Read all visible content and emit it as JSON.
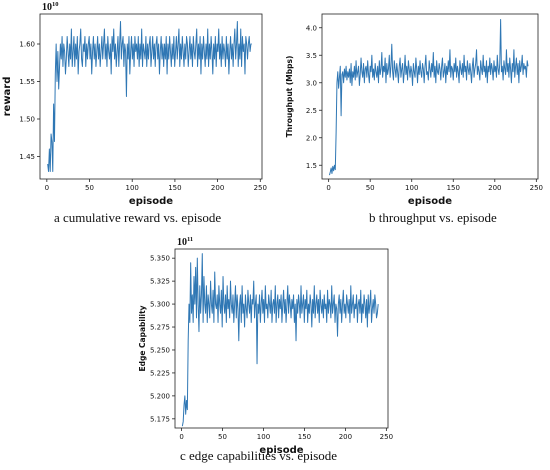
{
  "colors": {
    "line": "#2f77b4",
    "axes": "#222222",
    "background": "#ffffff"
  },
  "chart_data": [
    {
      "type": "line",
      "caption": "a  cumulative reward vs. episode",
      "xlabel": "episode",
      "ylabel": "reward",
      "exponent": "10",
      "exponent_power": "10",
      "xlim": [
        -8,
        252
      ],
      "ylim": [
        1.42,
        1.64
      ],
      "xticks": [
        0,
        50,
        100,
        150,
        200,
        250
      ],
      "yticks": [
        1.45,
        1.5,
        1.55,
        1.6
      ],
      "ytick_labels": [
        "1.45",
        "1.50",
        "1.55",
        "1.60"
      ],
      "x_start": 1,
      "x_end": 240,
      "values": [
        1.44,
        1.43,
        1.46,
        1.43,
        1.48,
        1.47,
        1.43,
        1.52,
        1.47,
        1.56,
        1.6,
        1.55,
        1.59,
        1.54,
        1.57,
        1.6,
        1.58,
        1.61,
        1.57,
        1.6,
        1.59,
        1.56,
        1.58,
        1.61,
        1.59,
        1.57,
        1.6,
        1.58,
        1.62,
        1.57,
        1.59,
        1.61,
        1.57,
        1.6,
        1.58,
        1.61,
        1.56,
        1.59,
        1.6,
        1.62,
        1.58,
        1.57,
        1.6,
        1.59,
        1.61,
        1.57,
        1.6,
        1.58,
        1.6,
        1.61,
        1.58,
        1.6,
        1.56,
        1.59,
        1.61,
        1.58,
        1.6,
        1.57,
        1.59,
        1.61,
        1.58,
        1.6,
        1.57,
        1.59,
        1.61,
        1.58,
        1.6,
        1.62,
        1.58,
        1.6,
        1.57,
        1.61,
        1.59,
        1.58,
        1.6,
        1.56,
        1.61,
        1.59,
        1.62,
        1.58,
        1.6,
        1.57,
        1.59,
        1.61,
        1.57,
        1.6,
        1.63,
        1.58,
        1.6,
        1.61,
        1.57,
        1.6,
        1.59,
        1.53,
        1.6,
        1.58,
        1.61,
        1.56,
        1.59,
        1.61,
        1.58,
        1.6,
        1.57,
        1.61,
        1.59,
        1.6,
        1.58,
        1.61,
        1.57,
        1.6,
        1.58,
        1.62,
        1.57,
        1.6,
        1.59,
        1.58,
        1.61,
        1.57,
        1.6,
        1.58,
        1.6,
        1.61,
        1.57,
        1.59,
        1.61,
        1.58,
        1.6,
        1.57,
        1.6,
        1.61,
        1.58,
        1.6,
        1.56,
        1.59,
        1.61,
        1.58,
        1.6,
        1.57,
        1.6,
        1.58,
        1.61,
        1.56,
        1.6,
        1.58,
        1.61,
        1.59,
        1.57,
        1.6,
        1.58,
        1.61,
        1.57,
        1.59,
        1.61,
        1.58,
        1.6,
        1.62,
        1.57,
        1.6,
        1.58,
        1.61,
        1.59,
        1.57,
        1.6,
        1.58,
        1.61,
        1.6,
        1.57,
        1.59,
        1.61,
        1.58,
        1.6,
        1.57,
        1.61,
        1.59,
        1.58,
        1.6,
        1.62,
        1.57,
        1.6,
        1.58,
        1.61,
        1.56,
        1.6,
        1.58,
        1.61,
        1.59,
        1.57,
        1.6,
        1.58,
        1.62,
        1.57,
        1.6,
        1.58,
        1.61,
        1.59,
        1.56,
        1.6,
        1.58,
        1.61,
        1.57,
        1.6,
        1.59,
        1.62,
        1.58,
        1.6,
        1.57,
        1.61,
        1.58,
        1.6,
        1.59,
        1.57,
        1.61,
        1.58,
        1.6,
        1.56,
        1.59,
        1.61,
        1.58,
        1.6,
        1.57,
        1.6,
        1.62,
        1.58,
        1.6,
        1.63,
        1.57,
        1.6,
        1.58,
        1.62,
        1.57,
        1.61,
        1.59,
        1.6,
        1.56,
        1.61,
        1.6,
        1.58,
        1.6,
        1.61,
        1.59,
        1.6,
        1.6
      ]
    },
    {
      "type": "line",
      "caption": "b  throughput vs. episode",
      "xlabel": "episode",
      "ylabel": "Throughput (Mbps)",
      "xlim": [
        -8,
        252
      ],
      "ylim": [
        1.25,
        4.25
      ],
      "xticks": [
        0,
        50,
        100,
        150,
        200,
        250
      ],
      "yticks": [
        1.5,
        2.0,
        2.5,
        3.0,
        3.5,
        4.0
      ],
      "ytick_labels": [
        "1.5",
        "2.0",
        "2.5",
        "3.0",
        "3.5",
        "4.0"
      ],
      "x_start": 1,
      "x_end": 240,
      "values": [
        1.32,
        1.38,
        1.45,
        1.35,
        1.48,
        1.4,
        1.5,
        1.42,
        2.1,
        3.0,
        3.2,
        2.9,
        3.1,
        3.3,
        2.4,
        3.15,
        3.2,
        3.0,
        3.25,
        3.1,
        3.3,
        3.05,
        3.2,
        3.1,
        3.25,
        3.0,
        3.35,
        2.95,
        3.2,
        3.1,
        3.3,
        3.05,
        3.4,
        3.1,
        3.2,
        3.3,
        2.95,
        3.15,
        3.45,
        3.2,
        3.1,
        3.35,
        3.0,
        3.25,
        3.3,
        3.1,
        3.4,
        3.15,
        3.0,
        3.3,
        3.2,
        3.5,
        3.1,
        3.25,
        3.05,
        3.35,
        3.2,
        3.1,
        3.3,
        3.0,
        3.4,
        3.15,
        3.25,
        3.55,
        3.1,
        3.3,
        3.2,
        3.45,
        3.0,
        3.35,
        3.15,
        3.25,
        3.5,
        3.1,
        3.3,
        3.7,
        3.2,
        3.05,
        3.4,
        3.25,
        3.1,
        3.35,
        3.2,
        3.0,
        3.3,
        3.45,
        3.1,
        3.25,
        3.35,
        3.0,
        3.2,
        3.5,
        3.15,
        3.3,
        3.05,
        3.4,
        3.25,
        3.1,
        3.3,
        3.2,
        2.95,
        3.35,
        3.2,
        3.1,
        3.45,
        3.25,
        3.0,
        3.3,
        3.15,
        3.4,
        3.2,
        3.1,
        3.35,
        3.25,
        3.0,
        3.3,
        3.5,
        3.15,
        3.2,
        3.05,
        3.4,
        3.25,
        3.1,
        3.35,
        3.2,
        3.55,
        3.1,
        3.3,
        3.0,
        3.4,
        3.2,
        3.15,
        3.35,
        3.25,
        3.05,
        3.3,
        3.45,
        3.1,
        3.2,
        3.35,
        3.0,
        3.3,
        3.15,
        3.4,
        3.2,
        3.6,
        3.1,
        3.3,
        3.25,
        3.05,
        3.35,
        3.2,
        3.45,
        3.1,
        3.3,
        3.2,
        3.0,
        3.4,
        3.25,
        3.15,
        3.35,
        3.1,
        3.5,
        3.2,
        3.3,
        3.05,
        3.4,
        3.25,
        3.15,
        3.35,
        3.2,
        3.0,
        3.3,
        3.45,
        3.1,
        3.25,
        3.35,
        3.6,
        3.15,
        3.3,
        3.2,
        3.05,
        3.4,
        3.25,
        3.15,
        3.5,
        3.2,
        3.3,
        3.1,
        3.4,
        3.0,
        3.3,
        3.2,
        3.45,
        3.15,
        3.35,
        3.25,
        3.05,
        3.4,
        3.2,
        3.3,
        3.1,
        3.5,
        3.25,
        3.15,
        3.35,
        4.15,
        3.2,
        3.3,
        3.05,
        3.4,
        3.25,
        3.15,
        3.6,
        3.2,
        3.35,
        3.1,
        3.45,
        3.25,
        3.0,
        3.35,
        3.2,
        3.6,
        3.1,
        3.3,
        3.45,
        3.15,
        3.35,
        3.0,
        3.4,
        3.2,
        3.3,
        3.5,
        3.15,
        3.35,
        3.25,
        3.3,
        3.1,
        3.4,
        3.3
      ]
    },
    {
      "type": "line",
      "caption": "c  edge capabilities vs. episode",
      "xlabel": "episode",
      "ylabel": "Edge Capability",
      "exponent": "10",
      "exponent_power": "11",
      "xlim": [
        -8,
        252
      ],
      "ylim": [
        5.165,
        5.36
      ],
      "xticks": [
        0,
        50,
        100,
        150,
        200,
        250
      ],
      "yticks": [
        5.175,
        5.2,
        5.225,
        5.25,
        5.275,
        5.3,
        5.325,
        5.35
      ],
      "ytick_labels": [
        "5.175",
        "5.200",
        "5.225",
        "5.250",
        "5.275",
        "5.300",
        "5.325",
        "5.350"
      ],
      "x_start": 1,
      "x_end": 240,
      "values": [
        5.167,
        5.172,
        5.19,
        5.2,
        5.18,
        5.195,
        5.185,
        5.26,
        5.3,
        5.28,
        5.345,
        5.29,
        5.31,
        5.28,
        5.33,
        5.3,
        5.34,
        5.285,
        5.35,
        5.3,
        5.27,
        5.32,
        5.29,
        5.31,
        5.355,
        5.28,
        5.33,
        5.3,
        5.29,
        5.32,
        5.28,
        5.31,
        5.3,
        5.285,
        5.325,
        5.3,
        5.29,
        5.315,
        5.28,
        5.335,
        5.3,
        5.295,
        5.31,
        5.28,
        5.32,
        5.3,
        5.29,
        5.315,
        5.275,
        5.33,
        5.3,
        5.29,
        5.31,
        5.28,
        5.32,
        5.295,
        5.305,
        5.285,
        5.325,
        5.3,
        5.29,
        5.31,
        5.28,
        5.3,
        5.32,
        5.285,
        5.31,
        5.295,
        5.26,
        5.3,
        5.31,
        5.28,
        5.32,
        5.29,
        5.3,
        5.275,
        5.31,
        5.295,
        5.285,
        5.315,
        5.3,
        5.29,
        5.31,
        5.28,
        5.305,
        5.3,
        5.325,
        5.285,
        5.3,
        5.31,
        5.235,
        5.3,
        5.29,
        5.31,
        5.28,
        5.3,
        5.315,
        5.29,
        5.305,
        5.28,
        5.32,
        5.295,
        5.3,
        5.285,
        5.31,
        5.3,
        5.29,
        5.315,
        5.28,
        5.3,
        5.305,
        5.29,
        5.32,
        5.28,
        5.3,
        5.31,
        5.285,
        5.305,
        5.295,
        5.31,
        5.28,
        5.3,
        5.315,
        5.29,
        5.305,
        5.28,
        5.3,
        5.32,
        5.29,
        5.31,
        5.3,
        5.285,
        5.305,
        5.295,
        5.31,
        5.28,
        5.3,
        5.26,
        5.305,
        5.29,
        5.31,
        5.3,
        5.285,
        5.32,
        5.29,
        5.3,
        5.31,
        5.28,
        5.305,
        5.295,
        5.315,
        5.28,
        5.3,
        5.29,
        5.31,
        5.3,
        5.275,
        5.305,
        5.29,
        5.32,
        5.285,
        5.3,
        5.31,
        5.29,
        5.305,
        5.28,
        5.315,
        5.3,
        5.29,
        5.305,
        5.285,
        5.31,
        5.295,
        5.3,
        5.28,
        5.315,
        5.29,
        5.305,
        5.3,
        5.285,
        5.32,
        5.29,
        5.3,
        5.31,
        5.28,
        5.3,
        5.295,
        5.265,
        5.3,
        5.31,
        5.29,
        5.305,
        5.28,
        5.3,
        5.315,
        5.29,
        5.3,
        5.285,
        5.31,
        5.3,
        5.29,
        5.305,
        5.28,
        5.32,
        5.29,
        5.3,
        5.31,
        5.285,
        5.3,
        5.295,
        5.31,
        5.28,
        5.3,
        5.305,
        5.29,
        5.315,
        5.28,
        5.3,
        5.29,
        5.31,
        5.3,
        5.285,
        5.305,
        5.275,
        5.31,
        5.29,
        5.3,
        5.315,
        5.28,
        5.295,
        5.305,
        5.29,
        5.31,
        5.3,
        5.285,
        5.29,
        5.3
      ]
    }
  ]
}
